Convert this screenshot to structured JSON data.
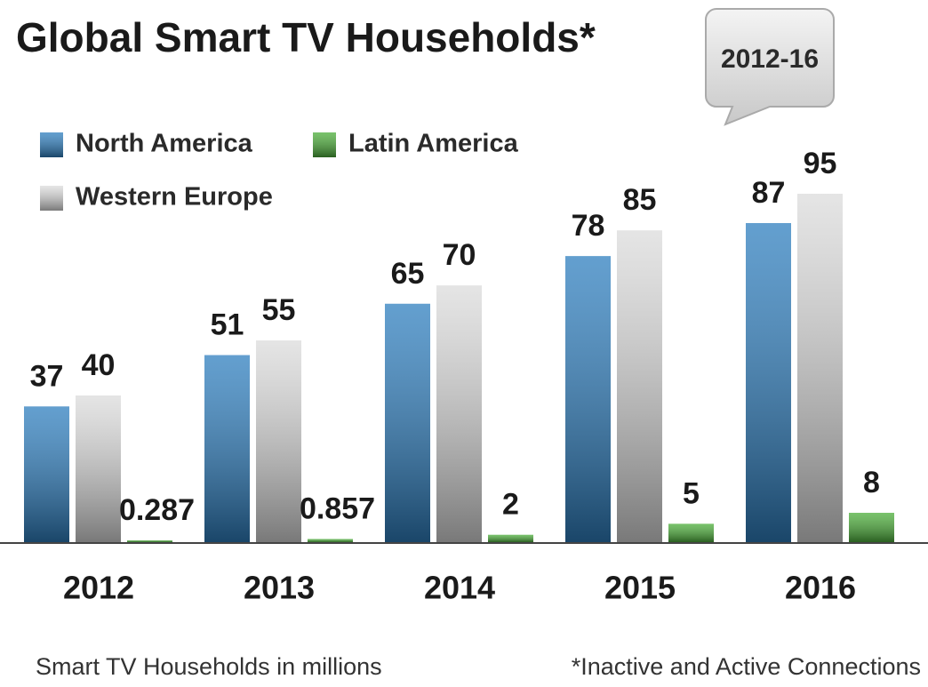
{
  "chart_data": {
    "type": "bar",
    "title": "Global Smart TV Households*",
    "badge": "2012-16",
    "subtitle": "Smart TV Households in millions",
    "footnote": "*Inactive and Active Connections",
    "categories": [
      "2012",
      "2013",
      "2014",
      "2015",
      "2016"
    ],
    "series": [
      {
        "name": "North America",
        "color": "#2f7fbf",
        "values": [
          37,
          51,
          65,
          78,
          87
        ]
      },
      {
        "name": "Western Europe",
        "color": "#dcdcdc",
        "values": [
          40,
          55,
          70,
          85,
          95
        ]
      },
      {
        "name": "Latin America",
        "color": "#4cae3a",
        "values": [
          0.287,
          0.857,
          2,
          5,
          8
        ]
      }
    ]
  }
}
